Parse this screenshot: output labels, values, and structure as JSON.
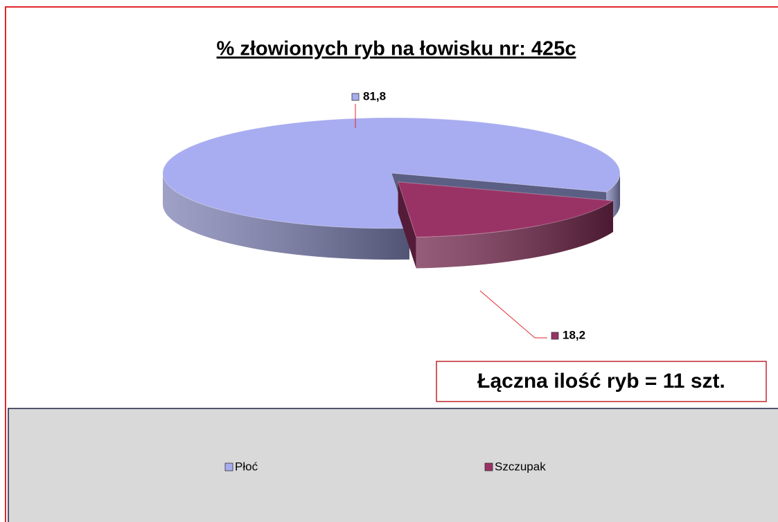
{
  "chart_data": {
    "type": "pie",
    "title": "% złowionych ryb na łowisku nr: 425c",
    "categories": [
      "Płoć",
      "Szczupak"
    ],
    "values": [
      81.8,
      18.2
    ],
    "value_labels": [
      "81,8",
      "18,2"
    ],
    "colors": [
      "#a8acf0",
      "#993366"
    ],
    "three_d": true,
    "exploded": [
      false,
      true
    ],
    "annotation": "Łączna ilość ryb = 11 szt.",
    "legend": "bottom"
  }
}
